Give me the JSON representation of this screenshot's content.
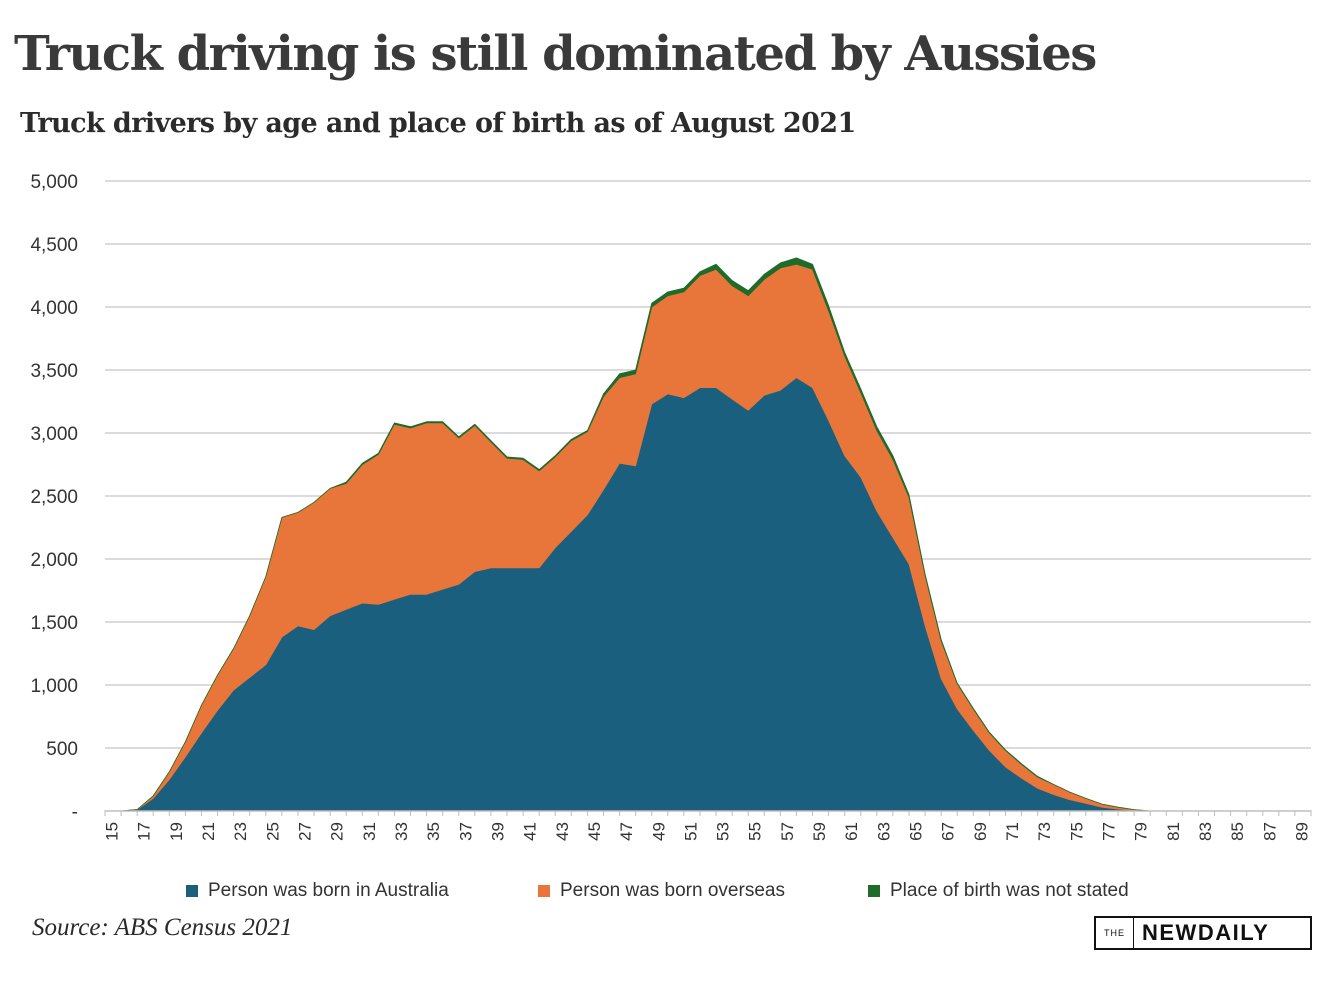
{
  "header": {
    "title": "Truck driving is still dominated by Aussies",
    "subtitle": "Truck drivers by age and place of birth as of August 2021"
  },
  "footer": {
    "source": "Source: ABS Census 2021",
    "logo_the": "THE",
    "logo_new": "NEW",
    "logo_daily": "DAILY"
  },
  "colors": {
    "australia": "#1a5f7e",
    "overseas": "#e8763a",
    "not_stated": "#1e6b2a",
    "grid": "#cfcfcf"
  },
  "chart_data": {
    "type": "area",
    "stacked": true,
    "title": "Truck drivers by age and place of birth as of August 2021",
    "xlabel": "",
    "ylabel": "",
    "ylim": [
      0,
      5000
    ],
    "y_ticks": [
      "-",
      "500",
      "1,000",
      "1,500",
      "2,000",
      "2,500",
      "3,000",
      "3,500",
      "4,000",
      "4,500",
      "5,000"
    ],
    "x_ticks": [
      "15",
      "17",
      "19",
      "21",
      "23",
      "25",
      "27",
      "29",
      "31",
      "33",
      "35",
      "37",
      "39",
      "41",
      "43",
      "45",
      "47",
      "49",
      "51",
      "53",
      "55",
      "57",
      "59",
      "61",
      "63",
      "65",
      "67",
      "69",
      "71",
      "73",
      "75",
      "77",
      "79",
      "81",
      "83",
      "85",
      "87",
      "89"
    ],
    "grid": true,
    "legend_position": "bottom",
    "x": [
      15,
      16,
      17,
      18,
      19,
      20,
      21,
      22,
      23,
      24,
      25,
      26,
      27,
      28,
      29,
      30,
      31,
      32,
      33,
      34,
      35,
      36,
      37,
      38,
      39,
      40,
      41,
      42,
      43,
      44,
      45,
      46,
      47,
      48,
      49,
      50,
      51,
      52,
      53,
      54,
      55,
      56,
      57,
      58,
      59,
      60,
      61,
      62,
      63,
      64,
      65,
      66,
      67,
      68,
      69,
      70,
      71,
      72,
      73,
      74,
      75,
      76,
      77,
      78,
      79,
      80,
      81,
      82,
      83,
      84,
      85,
      86,
      87,
      88,
      89,
      90
    ],
    "series": [
      {
        "name": "Person was born in Australia",
        "values": [
          0,
          0,
          10,
          100,
          250,
          430,
          620,
          800,
          960,
          1060,
          1160,
          1380,
          1470,
          1440,
          1550,
          1600,
          1650,
          1640,
          1680,
          1720,
          1720,
          1760,
          1800,
          1900,
          1930,
          1930,
          1930,
          1930,
          2090,
          2220,
          2350,
          2550,
          2760,
          2740,
          3230,
          3310,
          3280,
          3360,
          3360,
          3270,
          3180,
          3300,
          3340,
          3440,
          3360,
          3100,
          2820,
          2650,
          2380,
          2170,
          1960,
          1470,
          1050,
          810,
          640,
          480,
          350,
          260,
          180,
          130,
          90,
          60,
          30,
          15,
          5,
          0,
          0,
          0,
          0,
          0,
          0,
          0,
          0,
          0,
          0,
          0
        ]
      },
      {
        "name": "Person was born overseas",
        "values": [
          0,
          0,
          2,
          20,
          60,
          120,
          220,
          280,
          330,
          490,
          700,
          950,
          900,
          1010,
          1010,
          1000,
          1100,
          1190,
          1390,
          1320,
          1360,
          1320,
          1160,
          1160,
          1000,
          870,
          860,
          770,
          720,
          720,
          660,
          740,
          680,
          730,
          770,
          780,
          840,
          890,
          940,
          900,
          910,
          920,
          970,
          900,
          940,
          870,
          790,
          670,
          640,
          620,
          530,
          400,
          300,
          200,
          170,
          140,
          130,
          110,
          90,
          80,
          60,
          40,
          25,
          15,
          6,
          0,
          0,
          0,
          0,
          0,
          0,
          0,
          0,
          0,
          0,
          0
        ]
      },
      {
        "name": "Place of birth was not stated",
        "values": [
          0,
          0,
          0,
          0,
          0,
          0,
          0,
          0,
          0,
          0,
          0,
          0,
          0,
          0,
          0,
          10,
          10,
          10,
          10,
          10,
          10,
          10,
          10,
          10,
          10,
          10,
          10,
          10,
          10,
          10,
          10,
          20,
          30,
          30,
          30,
          30,
          30,
          30,
          40,
          40,
          40,
          40,
          40,
          50,
          40,
          40,
          30,
          30,
          30,
          30,
          20,
          10,
          10,
          5,
          5,
          5,
          5,
          5,
          5,
          0,
          0,
          0,
          0,
          0,
          0,
          0,
          0,
          0,
          0,
          0,
          0,
          0,
          0,
          0,
          0,
          0
        ]
      }
    ]
  }
}
